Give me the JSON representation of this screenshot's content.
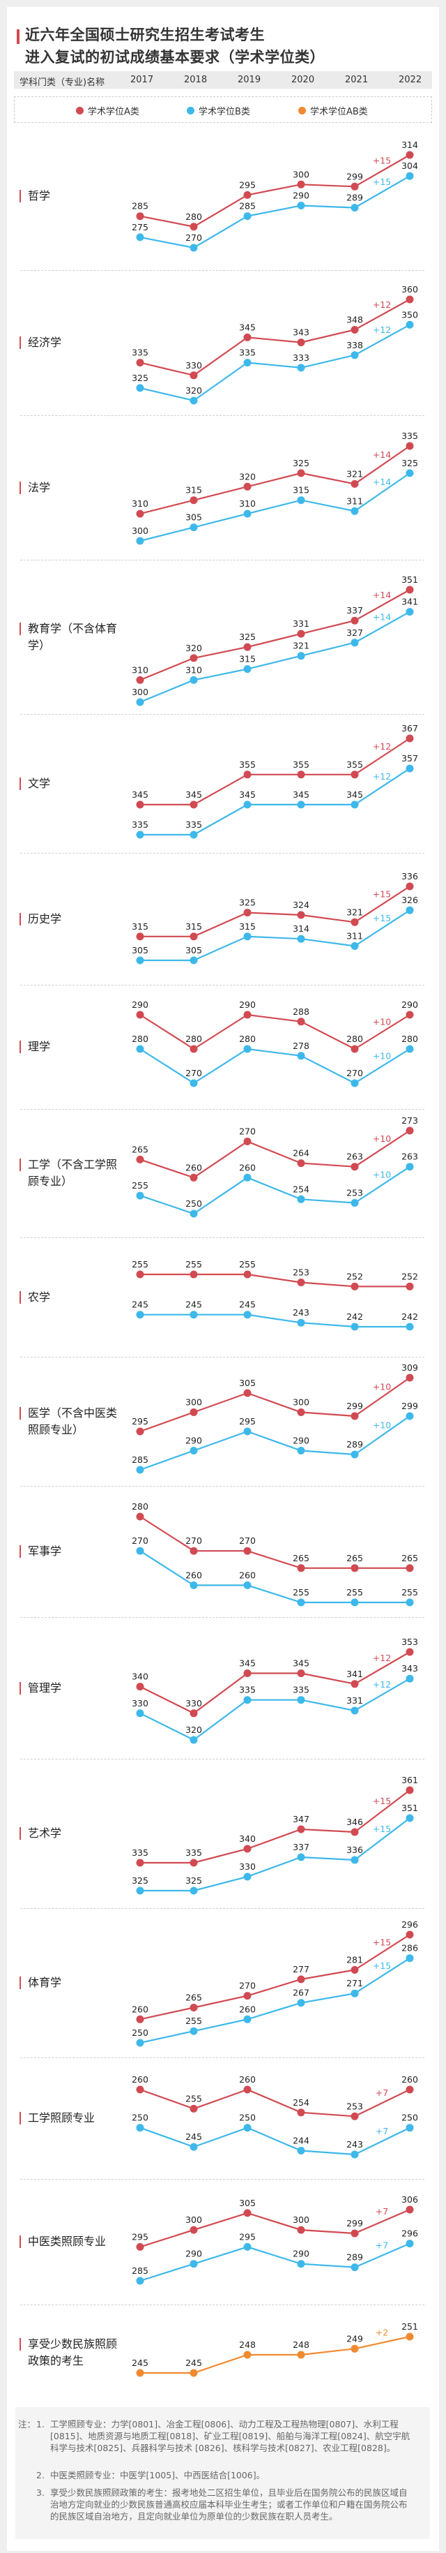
{
  "title": {
    "line1": "近六年全国硕士研究生招生考试考生",
    "line2": "进入复试的初试成绩基本要求（学术学位类）"
  },
  "header": {
    "name_col": "学科门类（专业)名称",
    "years": [
      "2017",
      "2018",
      "2019",
      "2020",
      "2021",
      "2022"
    ]
  },
  "legend": [
    {
      "label": "学术学位A类",
      "color": "#d14a52"
    },
    {
      "label": "学术学位B类",
      "color": "#3db8ea"
    },
    {
      "label": "学术学位AB类",
      "color": "#f08a30"
    }
  ],
  "chart_data": {
    "type": "line",
    "x": [
      2017,
      2018,
      2019,
      2020,
      2021,
      2022
    ],
    "panels": [
      {
        "name": "哲学",
        "series": [
          {
            "name": "学术学位A类",
            "values": [
              285,
              280,
              295,
              300,
              299,
              314
            ],
            "delta": "+15"
          },
          {
            "name": "学术学位B类",
            "values": [
              275,
              270,
              285,
              290,
              289,
              304
            ],
            "delta": "+15"
          }
        ]
      },
      {
        "name": "经济学",
        "series": [
          {
            "name": "学术学位A类",
            "values": [
              335,
              330,
              345,
              343,
              348,
              360
            ],
            "delta": "+12"
          },
          {
            "name": "学术学位B类",
            "values": [
              325,
              320,
              335,
              333,
              338,
              350
            ],
            "delta": "+12"
          }
        ]
      },
      {
        "name": "法学",
        "series": [
          {
            "name": "学术学位A类",
            "values": [
              310,
              315,
              320,
              325,
              321,
              335
            ],
            "delta": "+14"
          },
          {
            "name": "学术学位B类",
            "values": [
              300,
              305,
              310,
              315,
              311,
              325
            ],
            "delta": "+14"
          }
        ]
      },
      {
        "name": "教育学（不含体育学）",
        "series": [
          {
            "name": "学术学位A类",
            "values": [
              310,
              320,
              325,
              331,
              337,
              351
            ],
            "delta": "+14"
          },
          {
            "name": "学术学位B类",
            "values": [
              300,
              310,
              315,
              321,
              327,
              341
            ],
            "delta": "+14"
          }
        ]
      },
      {
        "name": "文学",
        "series": [
          {
            "name": "学术学位A类",
            "values": [
              345,
              345,
              355,
              355,
              355,
              367
            ],
            "delta": "+12"
          },
          {
            "name": "学术学位B类",
            "values": [
              335,
              335,
              345,
              345,
              345,
              357
            ],
            "delta": "+12"
          }
        ]
      },
      {
        "name": "历史学",
        "series": [
          {
            "name": "学术学位A类",
            "values": [
              315,
              315,
              325,
              324,
              321,
              336
            ],
            "delta": "+15"
          },
          {
            "name": "学术学位B类",
            "values": [
              305,
              305,
              315,
              314,
              311,
              326
            ],
            "delta": "+15"
          }
        ]
      },
      {
        "name": "理学",
        "series": [
          {
            "name": "学术学位A类",
            "values": [
              290,
              280,
              290,
              288,
              280,
              290
            ],
            "delta": "+10"
          },
          {
            "name": "学术学位B类",
            "values": [
              280,
              270,
              280,
              278,
              270,
              280
            ],
            "delta": "+10"
          }
        ]
      },
      {
        "name": "工学（不含工学照顾专业）",
        "series": [
          {
            "name": "学术学位A类",
            "values": [
              265,
              260,
              270,
              264,
              263,
              273
            ],
            "delta": "+10"
          },
          {
            "name": "学术学位B类",
            "values": [
              255,
              250,
              260,
              254,
              253,
              263
            ],
            "delta": "+10"
          }
        ]
      },
      {
        "name": "农学",
        "series": [
          {
            "name": "学术学位A类",
            "values": [
              255,
              255,
              255,
              253,
              252,
              252
            ],
            "delta": ""
          },
          {
            "name": "学术学位B类",
            "values": [
              245,
              245,
              245,
              243,
              242,
              242
            ],
            "delta": ""
          }
        ]
      },
      {
        "name": "医学（不含中医类照顾专业）",
        "series": [
          {
            "name": "学术学位A类",
            "values": [
              295,
              300,
              305,
              300,
              299,
              309
            ],
            "delta": "+10"
          },
          {
            "name": "学术学位B类",
            "values": [
              285,
              290,
              295,
              290,
              289,
              299
            ],
            "delta": "+10"
          }
        ]
      },
      {
        "name": "军事学",
        "series": [
          {
            "name": "学术学位A类",
            "values": [
              280,
              270,
              270,
              265,
              265,
              265
            ],
            "delta": ""
          },
          {
            "name": "学术学位B类",
            "values": [
              270,
              260,
              260,
              255,
              255,
              255
            ],
            "delta": ""
          }
        ]
      },
      {
        "name": "管理学",
        "series": [
          {
            "name": "学术学位A类",
            "values": [
              340,
              330,
              345,
              345,
              341,
              353
            ],
            "delta": "+12"
          },
          {
            "name": "学术学位B类",
            "values": [
              330,
              320,
              335,
              335,
              331,
              343
            ],
            "delta": "+12"
          }
        ]
      },
      {
        "name": "艺术学",
        "series": [
          {
            "name": "学术学位A类",
            "values": [
              335,
              335,
              340,
              347,
              346,
              361
            ],
            "delta": "+15"
          },
          {
            "name": "学术学位B类",
            "values": [
              325,
              325,
              330,
              337,
              336,
              351
            ],
            "delta": "+15"
          }
        ]
      },
      {
        "name": "体育学",
        "series": [
          {
            "name": "学术学位A类",
            "values": [
              260,
              265,
              270,
              277,
              281,
              296
            ],
            "delta": "+15"
          },
          {
            "name": "学术学位B类",
            "values": [
              250,
              255,
              260,
              267,
              271,
              286
            ],
            "delta": "+15"
          }
        ]
      },
      {
        "name": "工学照顾专业",
        "series": [
          {
            "name": "学术学位A类",
            "values": [
              260,
              255,
              260,
              254,
              253,
              260
            ],
            "delta": "+7"
          },
          {
            "name": "学术学位B类",
            "values": [
              250,
              245,
              250,
              244,
              243,
              250
            ],
            "delta": "+7"
          }
        ]
      },
      {
        "name": "中医类照顾专业",
        "series": [
          {
            "name": "学术学位A类",
            "values": [
              295,
              300,
              305,
              300,
              299,
              306
            ],
            "delta": "+7"
          },
          {
            "name": "学术学位B类",
            "values": [
              285,
              290,
              295,
              290,
              289,
              296
            ],
            "delta": "+7"
          }
        ]
      },
      {
        "name": "享受少数民族照顾政策的考生",
        "series": [
          {
            "name": "学术学位AB类",
            "values": [
              245,
              245,
              248,
              248,
              249,
              251
            ],
            "delta": "+2"
          }
        ]
      }
    ]
  },
  "notes": {
    "prefix": "注：",
    "items": [
      {
        "num": "1.",
        "text": "工学照顾专业：力学[0801]、冶金工程[0806]、动力工程及工程热物理[0807]、水利工程[0815]、地质资源与地质工程[0818]、矿业工程[0819]、船舶与海洋工程[0824]、航空宇航科学与技术[0825]、兵器科学与技术 [0826]、核科学与技术[0827]、农业工程[0828]。"
      },
      {
        "num": "2.",
        "text": "中医类照顾专业：中医学[1005]、中西医结合[1006]。"
      },
      {
        "num": "3.",
        "text": "享受少数民族照顾政策的考生：报考地处二区招生单位，且毕业后在国务院公布的民族区域自治地方定向就业的少数民族普通高校应届本科毕业生考生；或者工作单位和户籍在国务院公布的民族区域自治地方，且定向就业单位为原单位的少数民族在职人员考生。"
      }
    ]
  }
}
